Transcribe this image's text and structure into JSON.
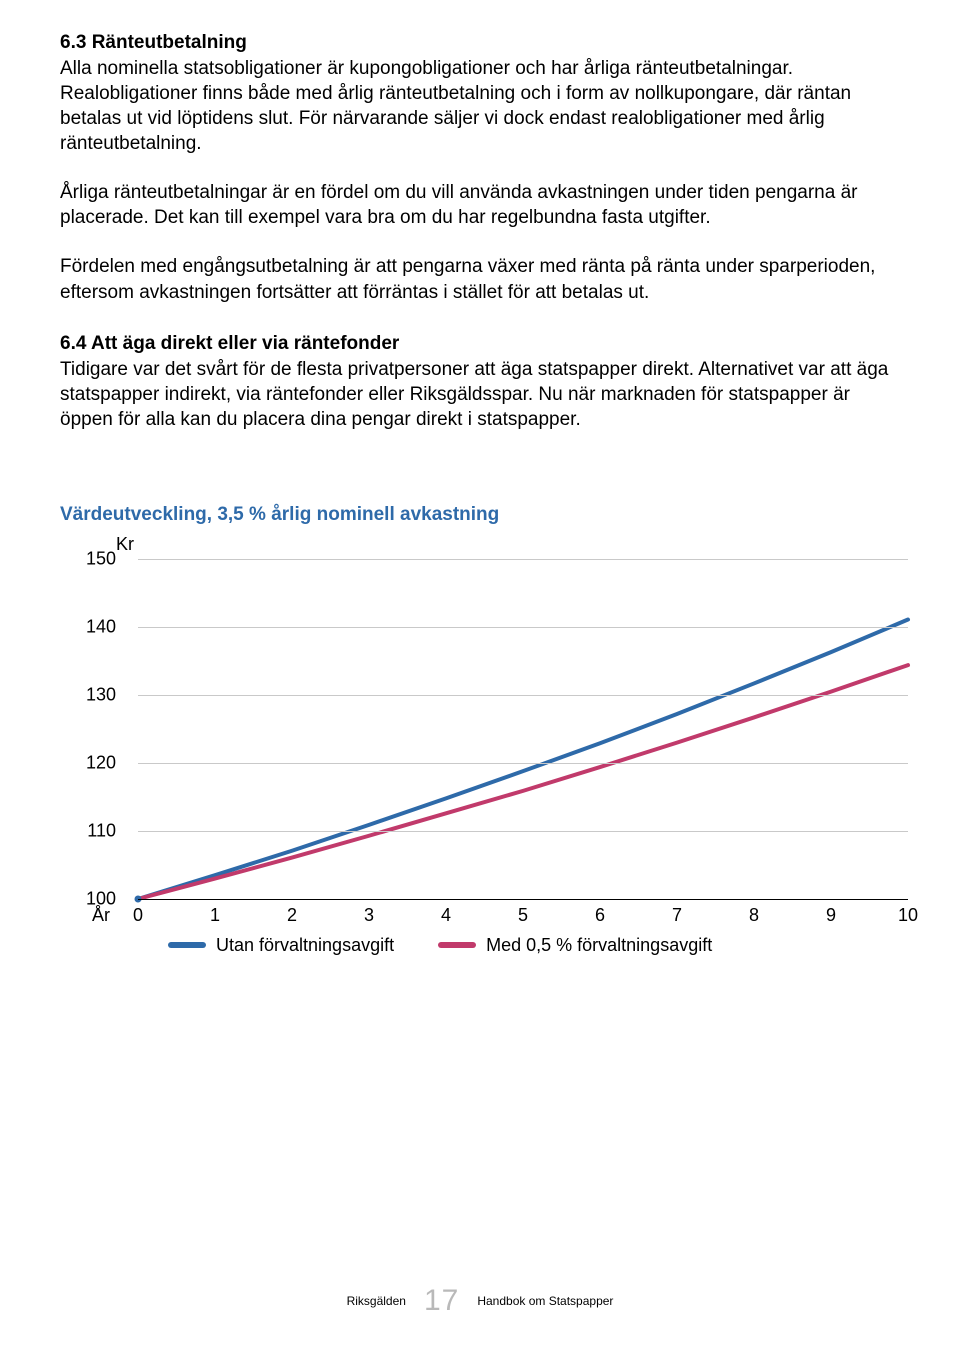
{
  "sections": {
    "s1": {
      "heading": "6.3 Ränteutbetalning",
      "p1": "Alla nominella statsobligationer är kupongobligationer och har årliga ränteutbetalningar. Realobligationer finns både med årlig ränteutbetalning och i form av nollkupongare, där räntan betalas ut vid löptidens slut. För närvarande säljer vi dock endast realobligationer med årlig ränteutbetalning.",
      "p2": "Årliga ränteutbetalningar är en fördel om du vill använda avkastningen under tiden pengarna är placerade. Det kan till exempel vara bra om du har regelbundna fasta utgifter.",
      "p3": "Fördelen med engångsutbetalning är att pengarna växer med ränta på ränta under sparperioden, eftersom avkastningen fortsätter att förräntas i stället för att betalas ut."
    },
    "s2": {
      "heading": "6.4 Att äga direkt eller via räntefonder",
      "p1": "Tidigare var det svårt för de flesta privatpersoner att äga statspapper direkt. Alternativet var att äga statspapper indirekt, via räntefonder eller Riksgäldsspar. Nu när marknaden för statspapper är öppen för alla kan du placera dina pengar direkt i statspapper."
    }
  },
  "chart": {
    "title": "Värdeutveckling, 3,5 % årlig nominell avkastning",
    "title_color": "#2e6aa9",
    "ylabel": "Kr",
    "xlabel": "År",
    "type": "line",
    "background_color": "#ffffff",
    "grid_color": "#c9c9c9",
    "axis_color": "#000000",
    "xlim": [
      0,
      10
    ],
    "ylim": [
      100,
      150
    ],
    "yticks": [
      100,
      110,
      120,
      130,
      140,
      150
    ],
    "xticks": [
      0,
      1,
      2,
      3,
      4,
      5,
      6,
      7,
      8,
      9,
      10
    ],
    "line_width": 4,
    "series": [
      {
        "name": "Utan förvaltningsavgift",
        "color": "#2e6aa9",
        "x": [
          0,
          1,
          2,
          3,
          4,
          5,
          6,
          7,
          8,
          9,
          10
        ],
        "y": [
          100.0,
          103.5,
          107.1,
          110.9,
          114.8,
          118.8,
          122.9,
          127.2,
          131.7,
          136.3,
          141.1
        ]
      },
      {
        "name": "Med 0,5 % förvaltningsavgift",
        "color": "#c13a6b",
        "x": [
          0,
          1,
          2,
          3,
          4,
          5,
          6,
          7,
          8,
          9,
          10
        ],
        "y": [
          100.0,
          103.0,
          106.1,
          109.3,
          112.6,
          115.9,
          119.4,
          123.0,
          126.7,
          130.5,
          134.4
        ]
      }
    ]
  },
  "footer": {
    "left": "Riksgälden",
    "page": "17",
    "right": "Handbok om Statspapper"
  }
}
